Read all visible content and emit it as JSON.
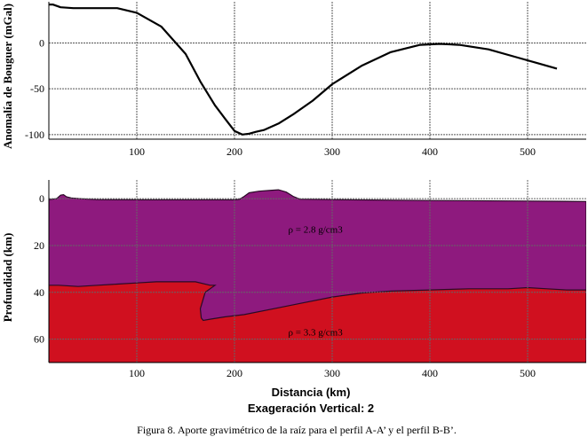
{
  "chart_data": [
    {
      "type": "line",
      "ylabel": "Anomalía de Bouguer (mGal)",
      "xlabel": "",
      "xlim": [
        10,
        560
      ],
      "ylim": [
        -105,
        45
      ],
      "x_ticks": [
        100,
        200,
        300,
        400,
        500
      ],
      "y_ticks": [
        0,
        -50,
        -100
      ],
      "grid": true,
      "series": [
        {
          "color": "#000000",
          "x": [
            10,
            14,
            22,
            35,
            55,
            80,
            100,
            125,
            150,
            165,
            180,
            192,
            200,
            208,
            215,
            222,
            230,
            245,
            260,
            280,
            300,
            330,
            360,
            390,
            410,
            430,
            460,
            490,
            510,
            530
          ],
          "y": [
            42,
            42,
            39,
            38,
            38,
            38,
            33,
            18,
            -12,
            -42,
            -68,
            -85,
            -96,
            -100,
            -99,
            -97,
            -95,
            -88,
            -78,
            -63,
            -45,
            -25,
            -10,
            -2,
            -1,
            -2,
            -7,
            -16,
            -22,
            -28
          ]
        }
      ]
    },
    {
      "type": "area",
      "xlabel": "Distancia (km)",
      "ylabel": "Profundidad (km)",
      "xlim": [
        10,
        560
      ],
      "ylim": [
        70,
        -8
      ],
      "x_ticks": [
        100,
        200,
        300,
        400,
        500
      ],
      "y_ticks": [
        0,
        20,
        40,
        60
      ],
      "grid": true,
      "layers": [
        {
          "name": "",
          "color": "#8e1a7e",
          "label": "ρ = 2.8 g/cm3",
          "label_pos": [
            255,
            13
          ],
          "top": {
            "x": [
              10,
              18,
              22,
              25,
              28,
              33,
              42,
              50,
              60,
              110,
              200,
              205,
              210,
              215,
              225,
              235,
              245,
              253,
              260,
              267,
              300,
              400,
              500,
              560
            ],
            "y": [
              0.4,
              0,
              -1.5,
              -1.7,
              -0.8,
              -0.3,
              0,
              0.2,
              0.4,
              0.5,
              0.5,
              0.3,
              -1,
              -2.5,
              -3.2,
              -3.5,
              -3.8,
              -2.8,
              -1,
              0.2,
              0.4,
              0.8,
              1,
              1.2
            ]
          }
        },
        {
          "name": "",
          "color": "#d0101f",
          "label": "ρ = 3.3 g/cm3",
          "label_pos": [
            255,
            57
          ],
          "top": {
            "x": [
              10,
              20,
              40,
              60,
              80,
              100,
              120,
              140,
              160,
              175,
              180,
              170,
              165,
              166,
              168,
              175,
              190,
              210,
              240,
              270,
              300,
              330,
              360,
              400,
              440,
              480,
              500,
              520,
              540,
              560
            ],
            "y": [
              37,
              37,
              37.5,
              37,
              36.5,
              36,
              35.5,
              35.5,
              35.5,
              37,
              37,
              40,
              47,
              51,
              52,
              51.5,
              50.5,
              49.5,
              47,
              44.5,
              42,
              40.3,
              39.5,
              39,
              38.5,
              38.5,
              38,
              38.5,
              39,
              39
            ]
          }
        }
      ]
    }
  ],
  "labels": {
    "x_axis_title": "Distancia (km)",
    "vertical_exaggeration": "Exageración Vertical: 2",
    "caption": "Figura 8. Aporte gravimétrico de la raíz para el perfil A-A’ y el perfil B-B’."
  }
}
